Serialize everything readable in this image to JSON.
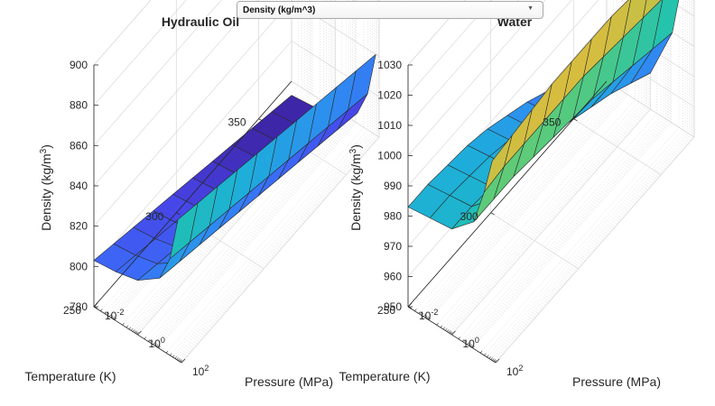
{
  "dropdown": {
    "selected": "Density (kg/m^3)"
  },
  "chart_data": [
    {
      "type": "surface",
      "title": "Hydraulic Oil",
      "xlabel": "Pressure (MPa)",
      "ylabel": "Temperature (K)",
      "zlabel": "Density  (kg/m",
      "zlabel_sup": "3",
      "zlabel_end": ")",
      "xscale": "log",
      "x_ticks": [
        {
          "value": 0.01,
          "base": "10",
          "exp": "-2"
        },
        {
          "value": 1,
          "base": "10",
          "exp": "0"
        },
        {
          "value": 100,
          "base": "10",
          "exp": "2"
        }
      ],
      "y_ticks": [
        250,
        300,
        350
      ],
      "z_ticks": [
        780,
        800,
        820,
        840,
        860,
        880,
        900
      ],
      "xlim": [
        0.01,
        100
      ],
      "ylim": [
        250,
        370
      ],
      "zlim": [
        780,
        900
      ],
      "grid": true,
      "colormap": [
        "#3e26a8",
        "#4743e6",
        "#3b6af8",
        "#2d8fef",
        "#1eaddb",
        "#1fc1b1",
        "#5acb7a",
        "#aac34f",
        "#e5bb3a",
        "#fcd52f",
        "#f9fb15"
      ],
      "surface": {
        "pressure": [
          0.01,
          0.1,
          1,
          10,
          30,
          70
        ],
        "temperature": [
          250,
          262,
          274,
          286,
          298,
          310,
          322,
          334,
          346,
          358,
          370
        ],
        "density": [
          [
            803,
            804.3,
            807,
            815,
            828,
            850
          ],
          [
            800,
            801.3,
            804,
            812,
            825,
            847
          ],
          [
            797,
            798.3,
            801,
            809,
            822,
            844
          ],
          [
            794,
            795.3,
            798,
            806,
            819,
            841
          ],
          [
            791,
            792.3,
            795,
            803,
            816,
            838
          ],
          [
            788,
            789.3,
            792,
            800,
            813,
            835
          ],
          [
            785,
            786.3,
            789,
            797,
            810,
            832
          ],
          [
            782,
            783.3,
            786,
            794,
            807,
            829
          ],
          [
            779,
            780.3,
            783,
            791,
            804,
            826
          ],
          [
            776,
            777.3,
            780,
            788,
            801,
            823
          ],
          [
            773,
            774.3,
            777,
            785,
            798,
            820
          ]
        ]
      }
    },
    {
      "type": "surface",
      "title": "Water",
      "xlabel": "Pressure (MPa)",
      "ylabel": "Temperature (K)",
      "zlabel": "Density  (kg/m",
      "zlabel_sup": "3",
      "zlabel_end": ")",
      "xscale": "log",
      "x_ticks": [
        {
          "value": 0.01,
          "base": "10",
          "exp": "-2"
        },
        {
          "value": 1,
          "base": "10",
          "exp": "0"
        },
        {
          "value": 100,
          "base": "10",
          "exp": "2"
        }
      ],
      "y_ticks": [
        250,
        300,
        350
      ],
      "z_ticks": [
        950,
        960,
        970,
        980,
        990,
        1000,
        1010,
        1020,
        1030
      ],
      "xlim": [
        0.01,
        100
      ],
      "ylim": [
        250,
        370
      ],
      "zlim": [
        950,
        1030
      ],
      "grid": true,
      "colormap": [
        "#3e26a8",
        "#4743e6",
        "#3b6af8",
        "#2d8fef",
        "#1eaddb",
        "#1fc1b1",
        "#5acb7a",
        "#aac34f",
        "#e5bb3a",
        "#fcd52f",
        "#f9fb15"
      ],
      "surface": {
        "pressure": [
          0.01,
          0.1,
          1,
          10,
          30,
          70
        ],
        "temperature": [
          250,
          262,
          274,
          286,
          298,
          310,
          322,
          334,
          346,
          358,
          370
        ],
        "density": [
          [
            983,
            984,
            985,
            992,
            1004,
            1016
          ],
          [
            983,
            984,
            985,
            992,
            1005,
            1017
          ],
          [
            982,
            983,
            984,
            992,
            1005,
            1018
          ],
          [
            981,
            982,
            983,
            991,
            1005,
            1019
          ],
          [
            979,
            980,
            981,
            990,
            1005,
            1019
          ],
          [
            976,
            977,
            979,
            989,
            1005,
            1019
          ],
          [
            973,
            974,
            976,
            988,
            1004,
            1019
          ],
          [
            969,
            970,
            973,
            986,
            1003,
            1018
          ],
          [
            965,
            966,
            970,
            984,
            1002,
            1018
          ],
          [
            961,
            962,
            966,
            982,
            1001,
            1017
          ],
          [
            957,
            958,
            962,
            980,
            1000,
            1016
          ]
        ]
      }
    }
  ]
}
